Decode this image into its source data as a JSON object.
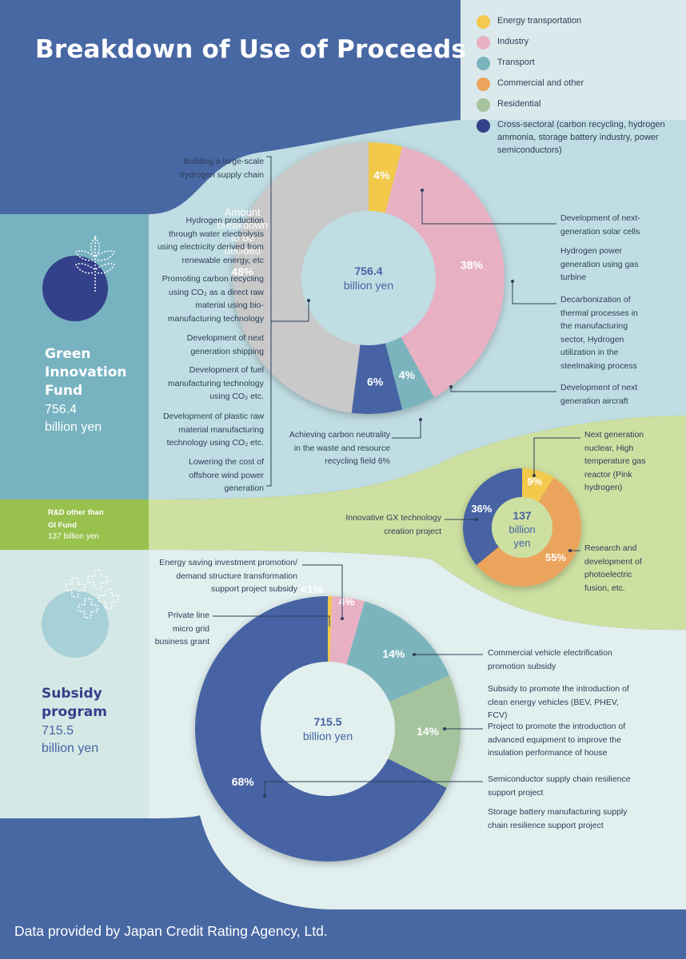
{
  "title": "Breakdown of Use of Proceeds",
  "legend": [
    {
      "label": "Energy transportation",
      "color": "#f2c94c",
      "icon": "circle"
    },
    {
      "label": "Industry",
      "color": "#e8b1c3",
      "icon": "circle"
    },
    {
      "label": "Transport",
      "color": "#7bb4bd",
      "icon": "circle"
    },
    {
      "label": "Commercial and other",
      "color": "#eba45c",
      "icon": "circle"
    },
    {
      "label": "Residential",
      "color": "#a5c49e",
      "icon": "circle"
    },
    {
      "label": "Cross-sectoral (carbon recycling, hydrogen ammonia, storage battery industry, power semiconductors)",
      "color": "#33408a",
      "icon": "circle"
    }
  ],
  "sections": {
    "gi": {
      "title_lines": [
        "Green",
        "Innovation",
        "Fund"
      ],
      "amount_lines": [
        "756.4",
        "billion yen"
      ],
      "icon": "leaf-sprout-icon"
    },
    "rd": {
      "title_lines": [
        "R&D other than",
        "GI Fund"
      ],
      "amount": "137 billion yen"
    },
    "subsidy": {
      "title_lines": [
        "Subsidy",
        "program"
      ],
      "amount_lines": [
        "715.5",
        "billion yen"
      ],
      "icon": "sparkle-crosses-icon"
    }
  },
  "gi_annotations_left": [
    "Building a large-scale hydrogen supply chain",
    "Hydrogen production through water electrolysis using electricity derived from renewable energy, etc",
    "Promoting carbon recycling using CO₂ as a direct raw material using bio-manufacturing technology",
    "Development of next generation shipping",
    "Development of fuel manufacturing technology using CO₂ etc.",
    "Development of plastic raw material manufacturing technology using CO₂ etc.",
    "Lowering the cost of offshore wind power generation"
  ],
  "gi_annotations_right": [
    "Development of next-generation solar cells",
    "Hydrogen power generation using gas turbine",
    "Decarbonization of thermal processes in the manufacturing sector, Hydrogen utilization in the steelmaking process",
    "Development of next generation aircraft"
  ],
  "gi_annotation_bottom": "Achieving carbon neutrality in the waste and resource recycling field 6%",
  "rd_annotations": {
    "nuclear": "Next generation nuclear, High temperature gas reactor (Pink hydrogen)",
    "gx": "Innovative GX technology creation project",
    "photo": "Research and development of photoelectric fusion, etc."
  },
  "sub_annotations": {
    "energy": "Energy saving investment promotion/ demand structure transformation support project subsidy",
    "microgrid": "Private line micro grid business grant",
    "vehicle1": "Commercial vehicle electrification promotion subsidy",
    "vehicle2": "Subsidy to promote the introduction of clean energy vehicles (BEV, PHEV, FCV)",
    "house": "Project to promote the introduction of advanced equipment to improve the insulation performance of house",
    "semi": "Semiconductor supply chain resilience support project",
    "battery": "Storage battery manufacturing supply chain resilience support project"
  },
  "footer": "Data provided by Japan Credit Rating Agency, Ltd.",
  "chart_data": [
    {
      "type": "pie",
      "name": "Green Innovation Fund",
      "center_label": [
        "756.4",
        "billion yen"
      ],
      "slices": [
        {
          "label": "Energy transportation",
          "value": 4,
          "display": "4%",
          "color": "#f2c94c"
        },
        {
          "label": "Industry",
          "value": 38,
          "display": "38%",
          "color": "#e8b1c3"
        },
        {
          "label": "Transport",
          "value": 4,
          "display": "4%",
          "color": "#7bb4bd"
        },
        {
          "label": "Cross-sectoral",
          "value": 6,
          "display": "6%",
          "color": "#4664a4"
        },
        {
          "label": "Amount breakdown to be decided",
          "value": 48,
          "display": "48%",
          "color": "#c9c9c9",
          "text_lines": [
            "Amount",
            "breakdown",
            "to be",
            "decided"
          ]
        }
      ]
    },
    {
      "type": "pie",
      "name": "R&D other than GI Fund",
      "center_label": [
        "137",
        "billion",
        "yen"
      ],
      "slices": [
        {
          "label": "Energy transportation",
          "value": 9,
          "display": "9%",
          "color": "#f2c94c"
        },
        {
          "label": "Commercial and other",
          "value": 55,
          "display": "55%",
          "color": "#eba45c"
        },
        {
          "label": "Cross-sectoral",
          "value": 36,
          "display": "36%",
          "color": "#4664a4"
        }
      ]
    },
    {
      "type": "pie",
      "name": "Subsidy program",
      "center_label": [
        "715.5",
        "billion yen"
      ],
      "slices": [
        {
          "label": "Energy transportation",
          "value": 0.5,
          "display": "<1%",
          "color": "#f2c94c"
        },
        {
          "label": "Industry",
          "value": 4,
          "display": "4%",
          "color": "#e8b1c3"
        },
        {
          "label": "Transport",
          "value": 14,
          "display": "14%",
          "color": "#7bb4bd"
        },
        {
          "label": "Residential",
          "value": 14,
          "display": "14%",
          "color": "#a5c49e"
        },
        {
          "label": "Cross-sectoral",
          "value": 68,
          "display": "68%",
          "color": "#4664a4"
        }
      ]
    }
  ]
}
